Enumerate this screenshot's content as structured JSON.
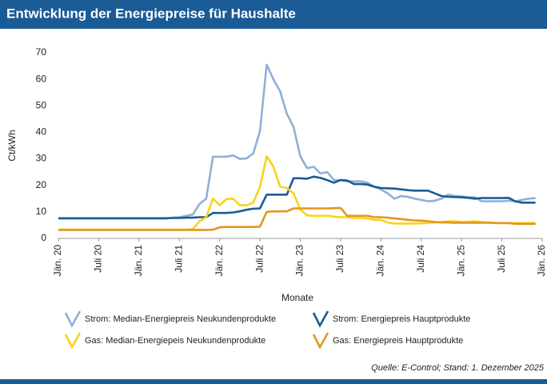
{
  "chart_data": {
    "type": "line",
    "title": "Entwicklung der Energiepreise für Haushalte",
    "y_label": "Ct/kWh",
    "x_label": "Monate",
    "source": "Quelle: E-Control; Stand: 1. Dezember 2025",
    "categories": [
      "Jän. 20",
      null,
      null,
      null,
      null,
      null,
      "Juli 20",
      null,
      null,
      null,
      null,
      null,
      "Jän. 21",
      null,
      null,
      null,
      null,
      null,
      "Juli 21",
      null,
      null,
      null,
      null,
      null,
      "Jän. 22",
      null,
      null,
      null,
      null,
      null,
      "Juli 22",
      null,
      null,
      null,
      null,
      null,
      "Jän. 23",
      null,
      null,
      null,
      null,
      null,
      "Juli 23",
      null,
      null,
      null,
      null,
      null,
      "Jän. 24",
      null,
      null,
      null,
      null,
      null,
      "Juli 24",
      null,
      null,
      null,
      null,
      null,
      "Jän. 25",
      null,
      null,
      null,
      null,
      null,
      "Juli 25",
      null,
      null,
      null,
      null,
      null,
      "Jän. 26"
    ],
    "ylim": [
      0,
      70
    ],
    "yticks": [
      0,
      10,
      20,
      30,
      40,
      50,
      60,
      70
    ],
    "series": [
      {
        "name": "Strom: Median-Energiepreis Neukundenprodukte",
        "color": "#8fb0d8",
        "values": [
          7.5,
          7.5,
          7.5,
          7.5,
          7.5,
          7.5,
          7.5,
          7.5,
          7.5,
          7.5,
          7.5,
          7.5,
          7.5,
          7.5,
          7.5,
          7.5,
          7.5,
          7.8,
          8,
          8.5,
          9,
          13,
          15,
          30.8,
          30.8,
          30.8,
          31.3,
          30,
          30.2,
          32,
          40.5,
          65.5,
          60,
          55.5,
          47,
          42,
          31,
          26.5,
          27,
          24.5,
          25,
          22,
          22,
          21.5,
          21.5,
          21.5,
          21,
          19.5,
          18.5,
          17,
          15,
          16,
          15.7,
          15,
          14.5,
          14,
          14.2,
          15,
          16.5,
          16,
          15.8,
          15.5,
          15.5,
          14,
          14,
          14,
          14,
          14.2,
          14,
          14.5,
          15,
          15.2,
          null
        ]
      },
      {
        "name": "Strom: Energiepreis Hauptprodukte",
        "color": "#1a5b96",
        "values": [
          7.6,
          7.6,
          7.6,
          7.6,
          7.6,
          7.6,
          7.6,
          7.6,
          7.6,
          7.6,
          7.6,
          7.6,
          7.6,
          7.6,
          7.6,
          7.6,
          7.6,
          7.7,
          7.7,
          7.8,
          7.8,
          8,
          8,
          9.6,
          9.6,
          9.6,
          9.8,
          10.2,
          10.8,
          11.2,
          11.3,
          16.5,
          16.5,
          16.5,
          16.5,
          22.7,
          22.7,
          22.5,
          23.3,
          22.8,
          22,
          21,
          22,
          21.8,
          20.5,
          20.5,
          20.3,
          19.5,
          19,
          18.9,
          18.8,
          18.5,
          18.2,
          18,
          18,
          18,
          17,
          16,
          15.7,
          15.6,
          15.5,
          15.3,
          15,
          15.2,
          15.2,
          15.2,
          15.2,
          15.3,
          14,
          13.5,
          13.5,
          13.5,
          null
        ]
      },
      {
        "name": "Gas: Median-Energiepeis Neukundenprodukte",
        "color": "#f7d31c",
        "values": [
          3.3,
          3.3,
          3.3,
          3.3,
          3.3,
          3.3,
          3.3,
          3.3,
          3.3,
          3.3,
          3.3,
          3.3,
          3.3,
          3.3,
          3.3,
          3.3,
          3.3,
          3.3,
          3.3,
          3.3,
          3.5,
          6.5,
          8,
          15,
          12.5,
          14.8,
          15,
          12.5,
          12.5,
          13.5,
          19.5,
          31,
          27,
          19.5,
          19,
          17,
          11,
          8.7,
          8.5,
          8.5,
          8.6,
          8.2,
          8,
          8,
          7.7,
          7.7,
          7.5,
          7,
          7,
          6,
          5.6,
          5.6,
          5.6,
          5.6,
          5.7,
          5.8,
          6,
          6.2,
          6.5,
          6.5,
          6.2,
          6.3,
          6.5,
          6.2,
          6,
          5.8,
          5.8,
          5.7,
          5.8,
          5.8,
          5.8,
          5.8,
          null
        ]
      },
      {
        "name": "Gas: Energiepreis Hauptprodukte",
        "color": "#e3961c",
        "values": [
          3.2,
          3.2,
          3.2,
          3.2,
          3.2,
          3.2,
          3.2,
          3.2,
          3.2,
          3.2,
          3.2,
          3.2,
          3.2,
          3.2,
          3.2,
          3.2,
          3.2,
          3.2,
          3.2,
          3.2,
          3.2,
          3.2,
          3.2,
          3.3,
          4.2,
          4.3,
          4.3,
          4.3,
          4.3,
          4.3,
          4.4,
          10,
          10.2,
          10.2,
          10.2,
          11.3,
          11.3,
          11.3,
          11.3,
          11.3,
          11.3,
          11.4,
          11.5,
          8.5,
          8.5,
          8.5,
          8.5,
          8,
          8,
          7.8,
          7.5,
          7.3,
          7,
          6.8,
          6.7,
          6.5,
          6.2,
          6,
          6,
          5.9,
          5.9,
          5.9,
          5.9,
          5.9,
          5.9,
          5.8,
          5.8,
          5.8,
          5.5,
          5.5,
          5.5,
          5.5,
          null
        ]
      }
    ]
  }
}
